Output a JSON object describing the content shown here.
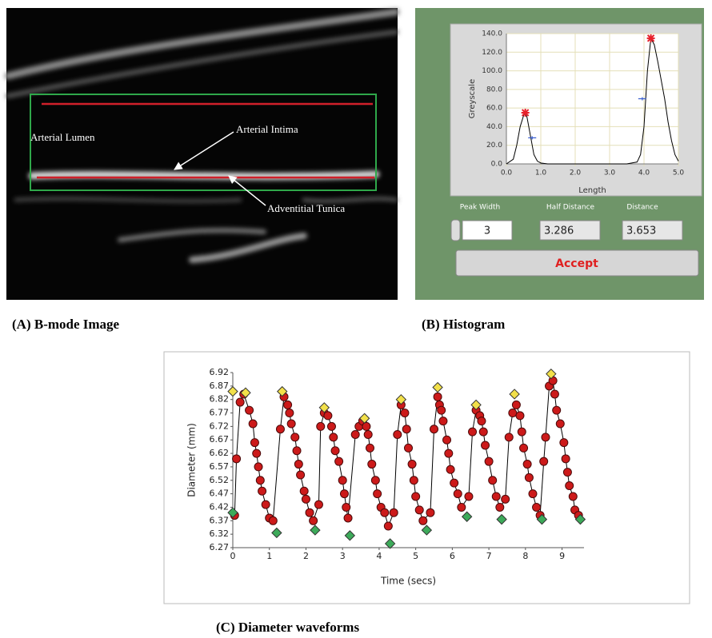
{
  "image": {
    "labels": [
      "Arterial Lumen",
      "Arterial Intima",
      "Adventitial Tunica"
    ]
  },
  "controls": {
    "labels": [
      "Peak Width",
      "Half Distance",
      "Distance"
    ],
    "values": [
      "3",
      "3.286",
      "3.653"
    ],
    "button": "Accept"
  },
  "captions": [
    "(A) B-mode Image",
    "(B) Histogram",
    "(C) Diameter waveforms"
  ],
  "chart_data": [
    {
      "type": "line",
      "x_label": "Length",
      "y_label": "Greyscale",
      "xlim": [
        0,
        5
      ],
      "ylim": [
        0,
        140
      ],
      "grid": true,
      "xticks": [
        {
          "value": 0,
          "label": "0.0"
        },
        {
          "value": 1,
          "label": "1.0"
        },
        {
          "value": 2,
          "label": "2.0"
        },
        {
          "value": 3,
          "label": "3.0"
        },
        {
          "value": 4,
          "label": "4.0"
        },
        {
          "value": 5,
          "label": "5.0"
        }
      ],
      "yticks": [
        {
          "value": 0,
          "label": "0.0"
        },
        {
          "value": 20,
          "label": "20.0"
        },
        {
          "value": 40,
          "label": "40.0"
        },
        {
          "value": 60,
          "label": "60.0"
        },
        {
          "value": 80,
          "label": "80.0"
        },
        {
          "value": 100,
          "label": "100.0"
        },
        {
          "value": 120,
          "label": "120.0"
        },
        {
          "value": 140,
          "label": "140.0"
        }
      ],
      "series": [
        {
          "color": "#000000",
          "line": true,
          "marker": "none",
          "x": [
            0,
            0.2,
            0.3,
            0.4,
            0.5,
            0.55,
            0.6,
            0.7,
            0.8,
            0.9,
            1.0,
            1.2,
            1.5,
            2,
            2.5,
            3,
            3.5,
            3.8,
            3.9,
            4.0,
            4.1,
            4.2,
            4.3,
            4.4,
            4.5,
            4.6,
            4.7,
            4.8,
            4.9,
            5.0
          ],
          "values": [
            0,
            5,
            20,
            40,
            52,
            55,
            50,
            30,
            10,
            3,
            1,
            0,
            0,
            0,
            0,
            0,
            0,
            2,
            10,
            40,
            100,
            135,
            128,
            110,
            90,
            70,
            45,
            25,
            10,
            3
          ]
        },
        {
          "color": "#e8202a",
          "line": false,
          "marker": "asterisk",
          "x": [
            0.55,
            4.2
          ],
          "values": [
            55,
            135
          ]
        },
        {
          "color": "#3a5fd0",
          "line": false,
          "marker": "cross",
          "x": [
            0.75,
            3.95
          ],
          "values": [
            28,
            70
          ]
        }
      ]
    },
    {
      "type": "line",
      "x_label": "Time (secs)",
      "y_label": "Diameter (mm)",
      "xlim": [
        0,
        9.6
      ],
      "ylim": [
        6.27,
        6.92
      ],
      "grid": false,
      "xticks": [
        0,
        1,
        2,
        3,
        4,
        5,
        6,
        7,
        8,
        9
      ],
      "yticks": [
        6.27,
        6.32,
        6.37,
        6.42,
        6.47,
        6.52,
        6.57,
        6.62,
        6.67,
        6.72,
        6.77,
        6.82,
        6.87,
        6.92
      ],
      "series": [
        {
          "color": "#cc1a1a",
          "line": true,
          "marker": "circle",
          "x": [
            0.05,
            0.1,
            0.2,
            0.3,
            0.45,
            0.55,
            0.6,
            0.65,
            0.7,
            0.75,
            0.8,
            0.9,
            1.0,
            1.1,
            1.3,
            1.4,
            1.5,
            1.55,
            1.6,
            1.7,
            1.75,
            1.8,
            1.85,
            1.95,
            2.0,
            2.1,
            2.2,
            2.35,
            2.4,
            2.5,
            2.6,
            2.7,
            2.75,
            2.8,
            2.9,
            3.0,
            3.05,
            3.1,
            3.15,
            3.35,
            3.45,
            3.55,
            3.65,
            3.7,
            3.75,
            3.8,
            3.9,
            3.95,
            4.05,
            4.15,
            4.25,
            4.4,
            4.5,
            4.6,
            4.7,
            4.75,
            4.8,
            4.9,
            4.95,
            5.0,
            5.1,
            5.2,
            5.4,
            5.5,
            5.6,
            5.65,
            5.7,
            5.75,
            5.85,
            5.9,
            5.95,
            6.05,
            6.15,
            6.25,
            6.45,
            6.55,
            6.65,
            6.75,
            6.8,
            6.85,
            6.9,
            7.0,
            7.1,
            7.2,
            7.3,
            7.45,
            7.55,
            7.65,
            7.75,
            7.85,
            7.9,
            7.95,
            8.05,
            8.1,
            8.2,
            8.3,
            8.4,
            8.5,
            8.55,
            8.65,
            8.75,
            8.8,
            8.85,
            8.95,
            9.05,
            9.1,
            9.15,
            9.2,
            9.3,
            9.35,
            9.45
          ],
          "values": [
            6.39,
            6.6,
            6.81,
            6.84,
            6.78,
            6.73,
            6.66,
            6.62,
            6.57,
            6.52,
            6.48,
            6.43,
            6.38,
            6.37,
            6.71,
            6.83,
            6.8,
            6.77,
            6.73,
            6.68,
            6.63,
            6.58,
            6.54,
            6.48,
            6.45,
            6.4,
            6.37,
            6.43,
            6.72,
            6.77,
            6.76,
            6.72,
            6.68,
            6.63,
            6.59,
            6.52,
            6.47,
            6.42,
            6.38,
            6.69,
            6.72,
            6.74,
            6.72,
            6.69,
            6.64,
            6.58,
            6.52,
            6.47,
            6.42,
            6.4,
            6.35,
            6.4,
            6.69,
            6.8,
            6.77,
            6.71,
            6.64,
            6.58,
            6.52,
            6.46,
            6.41,
            6.37,
            6.4,
            6.71,
            6.83,
            6.8,
            6.78,
            6.74,
            6.67,
            6.62,
            6.56,
            6.51,
            6.47,
            6.42,
            6.46,
            6.7,
            6.78,
            6.76,
            6.74,
            6.7,
            6.65,
            6.59,
            6.52,
            6.46,
            6.42,
            6.45,
            6.68,
            6.77,
            6.8,
            6.76,
            6.7,
            6.64,
            6.58,
            6.53,
            6.47,
            6.42,
            6.39,
            6.59,
            6.68,
            6.87,
            6.89,
            6.84,
            6.78,
            6.73,
            6.66,
            6.6,
            6.55,
            6.5,
            6.46,
            6.41,
            6.39
          ]
        },
        {
          "color": "#f2e04a",
          "line": false,
          "marker": "diamond",
          "x": [
            0,
            0.35,
            1.35,
            2.5,
            3.6,
            4.6,
            5.6,
            6.65,
            7.7,
            8.7
          ],
          "values": [
            6.85,
            6.845,
            6.85,
            6.79,
            6.75,
            6.82,
            6.865,
            6.8,
            6.84,
            6.915
          ]
        },
        {
          "color": "#3daa5a",
          "line": false,
          "marker": "diamond",
          "x": [
            0,
            1.2,
            2.25,
            3.2,
            4.3,
            5.3,
            6.4,
            7.35,
            8.45,
            9.5
          ],
          "values": [
            6.4,
            6.325,
            6.335,
            6.315,
            6.285,
            6.335,
            6.385,
            6.375,
            6.375,
            6.375
          ]
        }
      ]
    }
  ]
}
